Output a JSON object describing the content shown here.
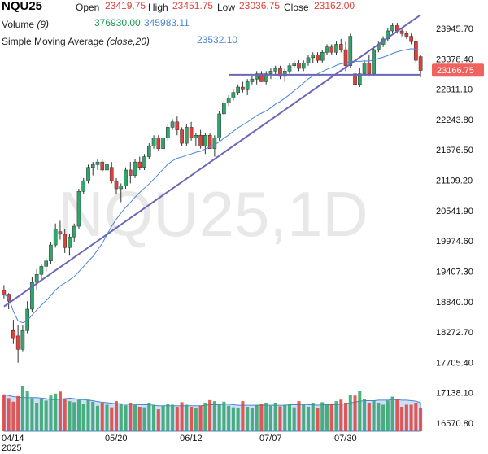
{
  "header": {
    "symbol": "NQU25",
    "open_label": "Open",
    "open_value": "23419.75",
    "high_label": "High",
    "high_value": "23451.75",
    "low_label": "Low",
    "low_value": "23036.75",
    "close_label": "Close",
    "close_value": "23162.00",
    "volume_label": "Volume",
    "volume_period": "(9)",
    "volume_value": "376930.00",
    "volume_ma_value": "345983.11",
    "sma_label": "Simple Moving Average",
    "sma_params": "(close,20)",
    "sma_value": "23532.10"
  },
  "colors": {
    "up": "#2fa56a",
    "down": "#e0403a",
    "sma": "#4a86d6",
    "trendline": "#6a67b8",
    "volume_area": "#aac4ec",
    "watermark": "#e8e8e8",
    "price_tag": "#f0625d"
  },
  "chart_data": {
    "type": "candlestick",
    "watermark": "NQU25,1D",
    "last_price_label": "23166.75",
    "y_ticks": [
      "23945.70",
      "23378.40",
      "22811.10",
      "22243.80",
      "21676.50",
      "21109.20",
      "20541.90",
      "19974.60",
      "19407.30",
      "18840.00",
      "18272.70",
      "17705.40",
      "17138.10",
      "16570.80"
    ],
    "x_ticks": [
      "04/14",
      "05/20",
      "06/12",
      "07/07",
      "07/30"
    ],
    "x_year_label": "2025",
    "ylim": [
      16500,
      24400
    ],
    "candles": [
      {
        "o": 19050,
        "h": 19150,
        "l": 18900,
        "c": 18980
      },
      {
        "o": 18980,
        "h": 19000,
        "l": 18700,
        "c": 18850
      },
      {
        "o": 18300,
        "h": 18500,
        "l": 18050,
        "c": 18150
      },
      {
        "o": 18200,
        "h": 18400,
        "l": 17700,
        "c": 17950
      },
      {
        "o": 17950,
        "h": 18400,
        "l": 17900,
        "c": 18300
      },
      {
        "o": 18300,
        "h": 18850,
        "l": 18250,
        "c": 18700
      },
      {
        "o": 18700,
        "h": 19300,
        "l": 18650,
        "c": 19200
      },
      {
        "o": 19200,
        "h": 19450,
        "l": 19050,
        "c": 19350
      },
      {
        "o": 19350,
        "h": 19550,
        "l": 19250,
        "c": 19500
      },
      {
        "o": 19500,
        "h": 19650,
        "l": 19400,
        "c": 19600
      },
      {
        "o": 19600,
        "h": 19950,
        "l": 19550,
        "c": 19900
      },
      {
        "o": 19900,
        "h": 20300,
        "l": 19850,
        "c": 20200
      },
      {
        "o": 20150,
        "h": 20350,
        "l": 20000,
        "c": 20100
      },
      {
        "o": 20100,
        "h": 20200,
        "l": 19750,
        "c": 19850
      },
      {
        "o": 19850,
        "h": 20100,
        "l": 19700,
        "c": 20050
      },
      {
        "o": 20050,
        "h": 20300,
        "l": 19950,
        "c": 20250
      },
      {
        "o": 20250,
        "h": 20950,
        "l": 20200,
        "c": 20900
      },
      {
        "o": 20900,
        "h": 21150,
        "l": 20850,
        "c": 21100
      },
      {
        "o": 21100,
        "h": 21400,
        "l": 21050,
        "c": 21350
      },
      {
        "o": 21350,
        "h": 21450,
        "l": 21200,
        "c": 21400
      },
      {
        "o": 21400,
        "h": 21500,
        "l": 21300,
        "c": 21450
      },
      {
        "o": 21450,
        "h": 21500,
        "l": 21250,
        "c": 21300
      },
      {
        "o": 21300,
        "h": 21450,
        "l": 21100,
        "c": 21400
      },
      {
        "o": 21350,
        "h": 21450,
        "l": 21050,
        "c": 21100
      },
      {
        "o": 21100,
        "h": 21150,
        "l": 20850,
        "c": 20950
      },
      {
        "o": 20950,
        "h": 21050,
        "l": 20700,
        "c": 21000
      },
      {
        "o": 21000,
        "h": 21350,
        "l": 20950,
        "c": 21300
      },
      {
        "o": 21300,
        "h": 21450,
        "l": 21050,
        "c": 21200
      },
      {
        "o": 21200,
        "h": 21500,
        "l": 21150,
        "c": 21450
      },
      {
        "o": 21450,
        "h": 21550,
        "l": 21300,
        "c": 21350
      },
      {
        "o": 21350,
        "h": 21600,
        "l": 21300,
        "c": 21550
      },
      {
        "o": 21550,
        "h": 21800,
        "l": 21500,
        "c": 21750
      },
      {
        "o": 21750,
        "h": 21950,
        "l": 21700,
        "c": 21900
      },
      {
        "o": 21900,
        "h": 21950,
        "l": 21650,
        "c": 21700
      },
      {
        "o": 21700,
        "h": 21950,
        "l": 21650,
        "c": 21900
      },
      {
        "o": 21900,
        "h": 22150,
        "l": 21850,
        "c": 22100
      },
      {
        "o": 22100,
        "h": 22250,
        "l": 22050,
        "c": 22200
      },
      {
        "o": 22200,
        "h": 22300,
        "l": 21950,
        "c": 22050
      },
      {
        "o": 22050,
        "h": 22100,
        "l": 21750,
        "c": 21800
      },
      {
        "o": 21800,
        "h": 22150,
        "l": 21750,
        "c": 22100
      },
      {
        "o": 22100,
        "h": 22200,
        "l": 21850,
        "c": 21900
      },
      {
        "o": 21900,
        "h": 22000,
        "l": 21750,
        "c": 21950
      },
      {
        "o": 21950,
        "h": 22050,
        "l": 21700,
        "c": 21750
      },
      {
        "o": 21750,
        "h": 22000,
        "l": 21600,
        "c": 21950
      },
      {
        "o": 21950,
        "h": 22000,
        "l": 21700,
        "c": 21700
      },
      {
        "o": 21700,
        "h": 21950,
        "l": 21550,
        "c": 21900
      },
      {
        "o": 21900,
        "h": 22400,
        "l": 21850,
        "c": 22350
      },
      {
        "o": 22350,
        "h": 22600,
        "l": 22300,
        "c": 22550
      },
      {
        "o": 22550,
        "h": 22700,
        "l": 22500,
        "c": 22650
      },
      {
        "o": 22650,
        "h": 22800,
        "l": 22600,
        "c": 22750
      },
      {
        "o": 22750,
        "h": 22900,
        "l": 22700,
        "c": 22850
      },
      {
        "o": 22850,
        "h": 22950,
        "l": 22750,
        "c": 22800
      },
      {
        "o": 22800,
        "h": 23000,
        "l": 22700,
        "c": 22950
      },
      {
        "o": 22950,
        "h": 23050,
        "l": 22900,
        "c": 23000
      },
      {
        "o": 23000,
        "h": 23150,
        "l": 22900,
        "c": 23100
      },
      {
        "o": 23100,
        "h": 23150,
        "l": 22950,
        "c": 22950
      },
      {
        "o": 22950,
        "h": 23150,
        "l": 22900,
        "c": 23100
      },
      {
        "o": 23100,
        "h": 23200,
        "l": 23000,
        "c": 23150
      },
      {
        "o": 23150,
        "h": 23250,
        "l": 23050,
        "c": 23200
      },
      {
        "o": 23200,
        "h": 23250,
        "l": 23000,
        "c": 23050
      },
      {
        "o": 23050,
        "h": 23200,
        "l": 22950,
        "c": 23150
      },
      {
        "o": 23150,
        "h": 23300,
        "l": 23100,
        "c": 23250
      },
      {
        "o": 23250,
        "h": 23350,
        "l": 23200,
        "c": 23300
      },
      {
        "o": 23300,
        "h": 23350,
        "l": 23150,
        "c": 23200
      },
      {
        "o": 23200,
        "h": 23350,
        "l": 23150,
        "c": 23300
      },
      {
        "o": 23300,
        "h": 23450,
        "l": 23250,
        "c": 23400
      },
      {
        "o": 23400,
        "h": 23500,
        "l": 23300,
        "c": 23450
      },
      {
        "o": 23450,
        "h": 23500,
        "l": 23300,
        "c": 23350
      },
      {
        "o": 23350,
        "h": 23550,
        "l": 23300,
        "c": 23500
      },
      {
        "o": 23500,
        "h": 23650,
        "l": 23450,
        "c": 23600
      },
      {
        "o": 23600,
        "h": 23650,
        "l": 23450,
        "c": 23500
      },
      {
        "o": 23500,
        "h": 23700,
        "l": 23450,
        "c": 23650
      },
      {
        "o": 23650,
        "h": 23750,
        "l": 23500,
        "c": 23550
      },
      {
        "o": 23550,
        "h": 23700,
        "l": 23150,
        "c": 23250
      },
      {
        "o": 23250,
        "h": 23850,
        "l": 23200,
        "c": 23800
      },
      {
        "o": 23100,
        "h": 23300,
        "l": 22800,
        "c": 22900
      },
      {
        "o": 22900,
        "h": 23200,
        "l": 22850,
        "c": 23100
      },
      {
        "o": 23100,
        "h": 23350,
        "l": 23050,
        "c": 23300
      },
      {
        "o": 23300,
        "h": 23450,
        "l": 23050,
        "c": 23100
      },
      {
        "o": 23100,
        "h": 23600,
        "l": 23050,
        "c": 23550
      },
      {
        "o": 23550,
        "h": 23700,
        "l": 23500,
        "c": 23650
      },
      {
        "o": 23650,
        "h": 23800,
        "l": 23600,
        "c": 23750
      },
      {
        "o": 23750,
        "h": 23950,
        "l": 23700,
        "c": 23900
      },
      {
        "o": 23900,
        "h": 24050,
        "l": 23850,
        "c": 24000
      },
      {
        "o": 24000,
        "h": 24050,
        "l": 23850,
        "c": 23900
      },
      {
        "o": 23900,
        "h": 23950,
        "l": 23800,
        "c": 23850
      },
      {
        "o": 23850,
        "h": 23900,
        "l": 23750,
        "c": 23800
      },
      {
        "o": 23800,
        "h": 23850,
        "l": 23650,
        "c": 23700
      },
      {
        "o": 23700,
        "h": 23750,
        "l": 23300,
        "c": 23350
      },
      {
        "o": 23419.75,
        "h": 23451.75,
        "l": 23036.75,
        "c": 23162
      }
    ],
    "volume": [
      720,
      650,
      580,
      690,
      880,
      790,
      650,
      560,
      640,
      600,
      700,
      740,
      780,
      640,
      590,
      570,
      610,
      540,
      620,
      580,
      500,
      560,
      520,
      470,
      590,
      540,
      510,
      560,
      520,
      480,
      470,
      560,
      520,
      430,
      500,
      540,
      520,
      480,
      570,
      520,
      480,
      450,
      500,
      560,
      610,
      590,
      520,
      580,
      500,
      470,
      450,
      590,
      480,
      460,
      520,
      540,
      560,
      500,
      560,
      490,
      520,
      540,
      470,
      590,
      540,
      480,
      560,
      450,
      570,
      520,
      540,
      590,
      620,
      560,
      720,
      700,
      800,
      640,
      560,
      600,
      560,
      520,
      600,
      680,
      620,
      480,
      520,
      520,
      560,
      460
    ],
    "volume_ma": [
      720,
      700,
      680,
      670,
      660,
      660,
      660,
      660,
      650,
      640,
      620,
      620,
      630,
      640,
      650,
      640,
      620,
      620,
      610,
      600,
      580,
      570,
      560,
      550,
      540,
      540,
      530,
      530,
      530,
      520,
      520,
      520,
      510,
      500,
      500,
      500,
      500,
      500,
      500,
      500,
      500,
      500,
      500,
      510,
      520,
      520,
      520,
      530,
      530,
      520,
      510,
      510,
      510,
      510,
      510,
      510,
      510,
      510,
      510,
      510,
      510,
      520,
      520,
      520,
      530,
      520,
      520,
      510,
      520,
      520,
      520,
      520,
      530,
      540,
      560,
      570,
      590,
      600,
      600,
      600,
      610,
      610,
      610,
      620,
      620,
      610,
      610,
      600,
      590,
      560
    ],
    "trendlines": [
      {
        "type": "rising_support",
        "from": [
          0,
          18750
        ],
        "to": [
          89,
          24200
        ]
      },
      {
        "type": "horizontal",
        "from": [
          48,
          23080
        ],
        "to": [
          89,
          23080
        ]
      }
    ]
  }
}
